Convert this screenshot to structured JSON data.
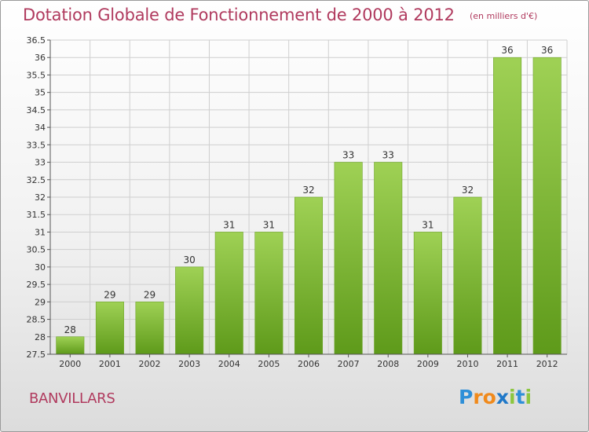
{
  "header": {
    "title": "Dotation Globale de Fonctionnement de 2000 à 2012",
    "unit": "(en milliers d'€)"
  },
  "footer": {
    "commune": "BANVILLARS",
    "logo_text": "Proxiti"
  },
  "colors": {
    "title": "#b03a5e",
    "bar_top": "#9fd155",
    "bar_bottom": "#5e9a1a",
    "grid": "#cfcfcf"
  },
  "chart_data": {
    "type": "bar",
    "categories": [
      "2000",
      "2001",
      "2002",
      "2003",
      "2004",
      "2005",
      "2006",
      "2007",
      "2008",
      "2009",
      "2010",
      "2011",
      "2012"
    ],
    "values": [
      28,
      29,
      29,
      30,
      31,
      31,
      32,
      33,
      33,
      31,
      32,
      36,
      36
    ],
    "data_labels": [
      "28",
      "29",
      "29",
      "30",
      "31",
      "31",
      "32",
      "33",
      "33",
      "31",
      "32",
      "36",
      "36"
    ],
    "ylim": [
      27.5,
      36.5
    ],
    "yticks": [
      "27.5",
      "28",
      "28.5",
      "29",
      "29.5",
      "30",
      "30.5",
      "31",
      "31.5",
      "32",
      "32.5",
      "33",
      "33.5",
      "34",
      "34.5",
      "35",
      "35.5",
      "36",
      "36.5"
    ],
    "grid": true,
    "legend": "none"
  }
}
